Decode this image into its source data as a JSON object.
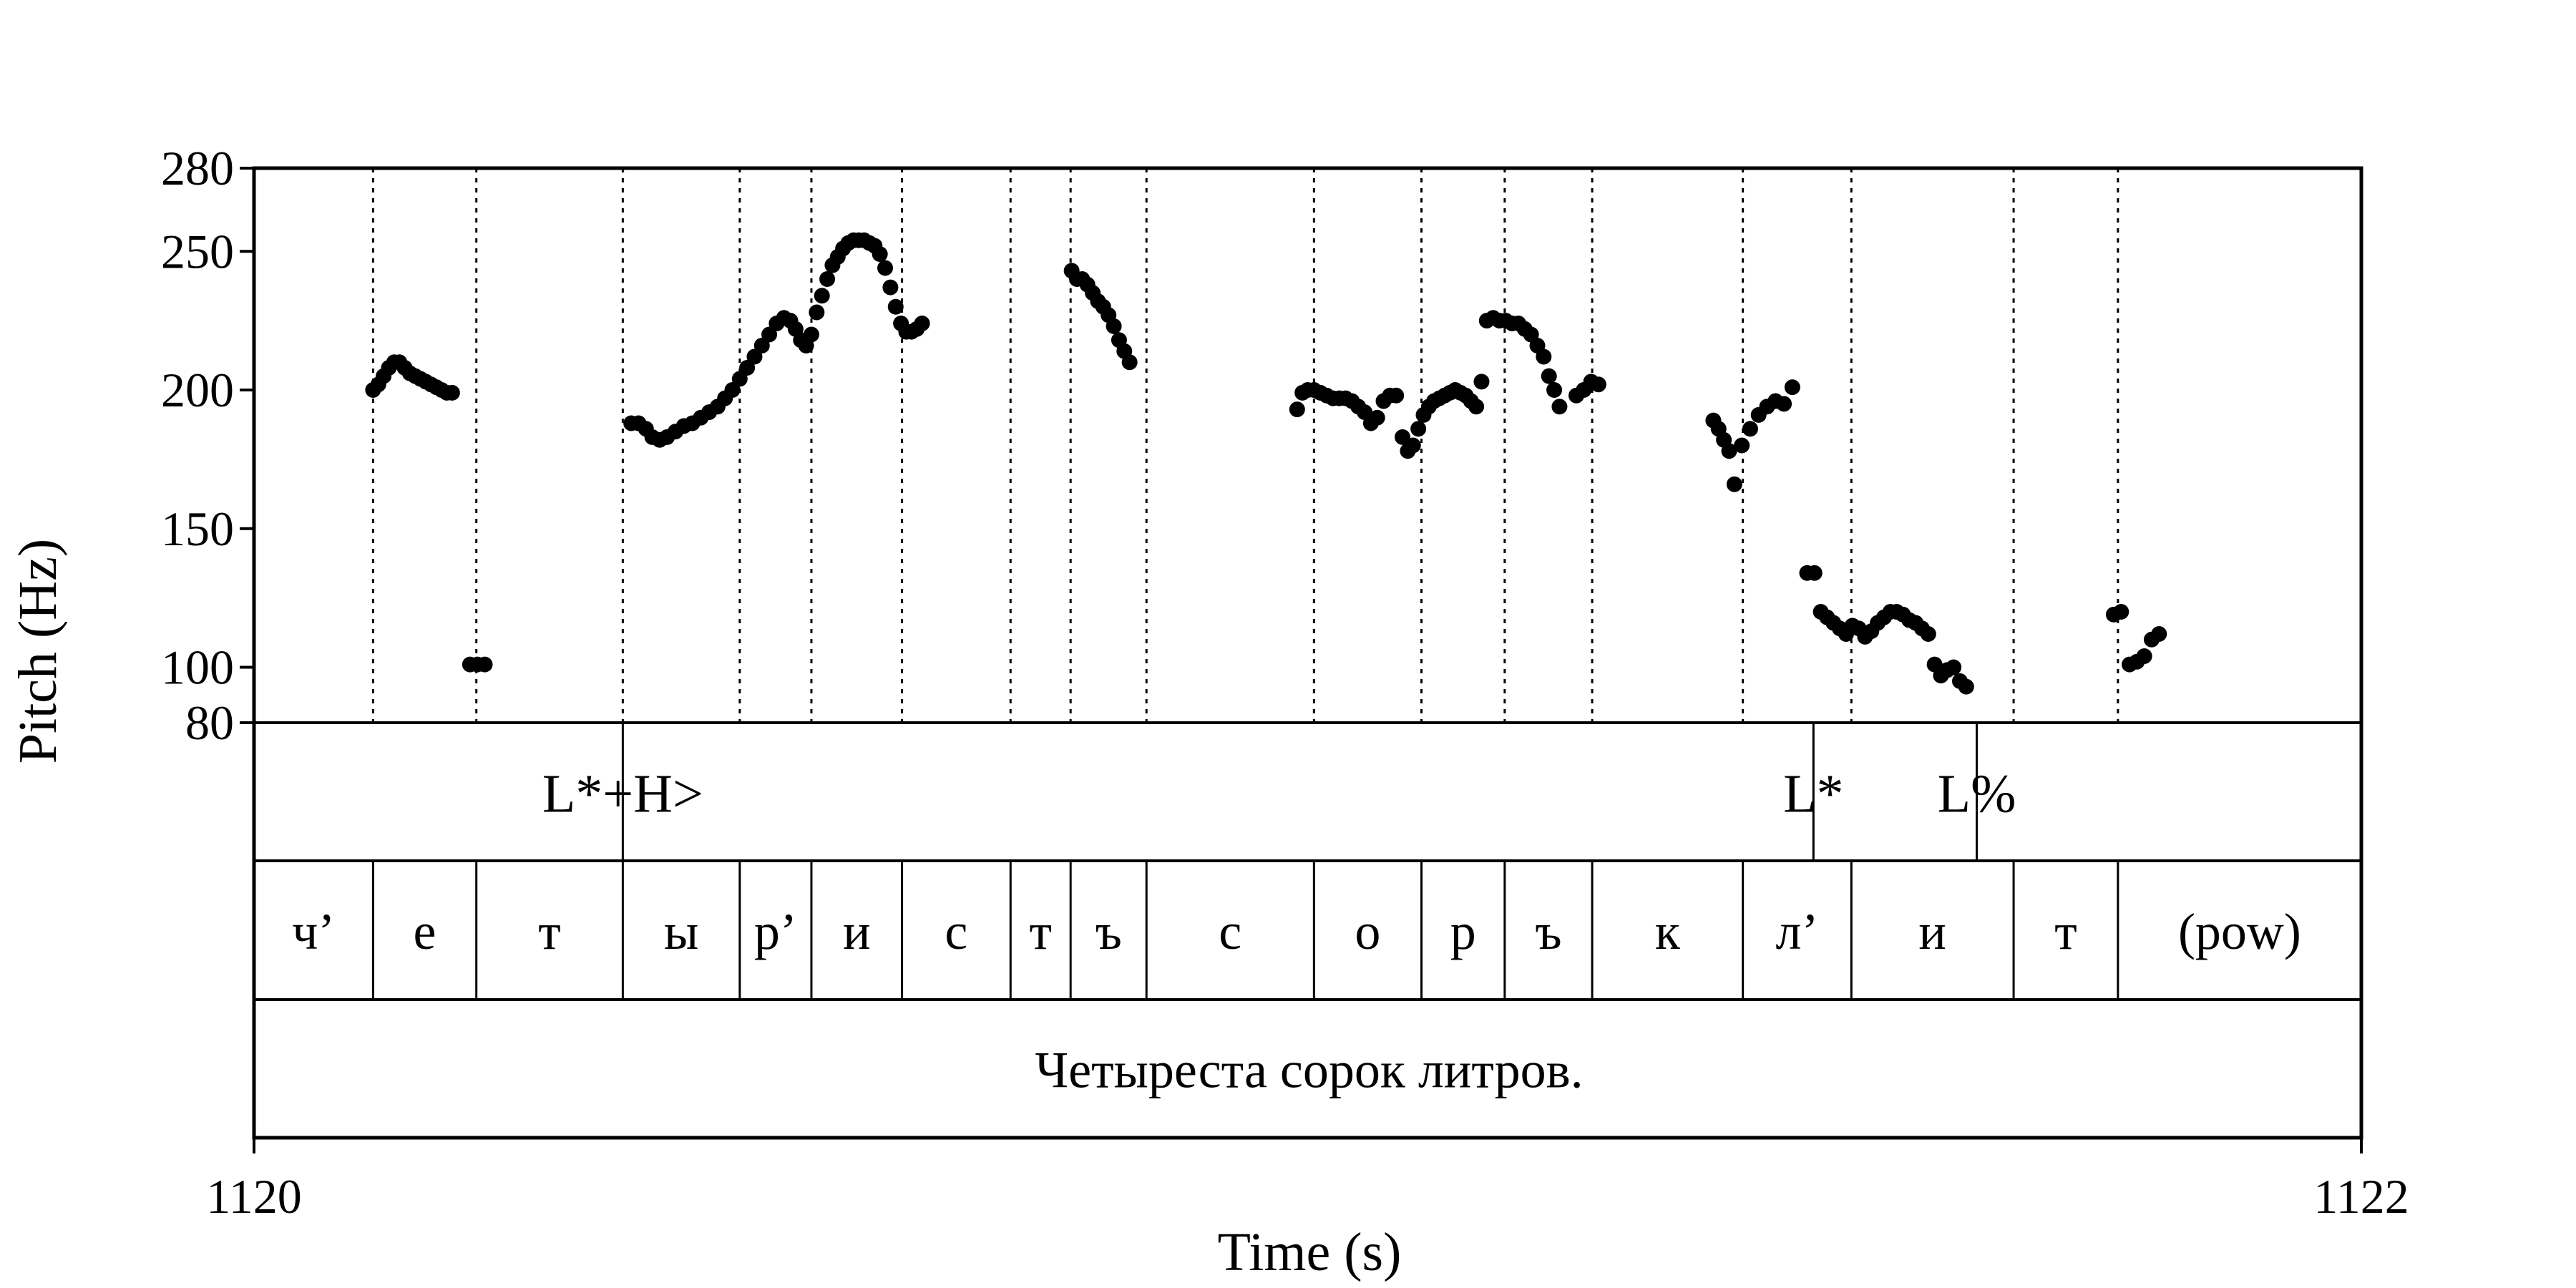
{
  "chart_data": {
    "type": "scatter",
    "title": "",
    "xlabel": "Time (s)",
    "ylabel": "Pitch (Hz)",
    "xlim": [
      1120,
      1122
    ],
    "ylim": [
      80,
      280
    ],
    "x_ticks": [
      1120,
      1122
    ],
    "x_tick_labels": [
      "1120",
      "1122"
    ],
    "y_ticks": [
      80,
      100,
      150,
      200,
      250,
      280
    ],
    "y_tick_labels": [
      "80",
      "100",
      "150",
      "200",
      "250",
      "280"
    ],
    "grid": false,
    "legend": "none",
    "series": [
      {
        "points": [
          [
            1120.113,
            200
          ],
          [
            1120.118,
            202
          ],
          [
            1120.123,
            205
          ],
          [
            1120.128,
            208
          ],
          [
            1120.133,
            210
          ],
          [
            1120.138,
            210
          ],
          [
            1120.143,
            208
          ],
          [
            1120.148,
            206
          ],
          [
            1120.153,
            205
          ],
          [
            1120.158,
            204
          ],
          [
            1120.163,
            203
          ],
          [
            1120.168,
            202
          ],
          [
            1120.173,
            201
          ],
          [
            1120.178,
            200
          ],
          [
            1120.183,
            199
          ],
          [
            1120.188,
            199
          ],
          [
            1120.205,
            101
          ],
          [
            1120.212,
            101
          ],
          [
            1120.219,
            101
          ],
          [
            1120.358,
            188
          ],
          [
            1120.365,
            188
          ],
          [
            1120.372,
            186
          ],
          [
            1120.378,
            183
          ],
          [
            1120.385,
            182
          ],
          [
            1120.392,
            183
          ],
          [
            1120.4,
            185
          ],
          [
            1120.408,
            187
          ],
          [
            1120.416,
            188
          ],
          [
            1120.424,
            190
          ],
          [
            1120.432,
            192
          ],
          [
            1120.44,
            194
          ],
          [
            1120.447,
            197
          ],
          [
            1120.454,
            200
          ],
          [
            1120.461,
            204
          ],
          [
            1120.468,
            208
          ],
          [
            1120.475,
            212
          ],
          [
            1120.482,
            216
          ],
          [
            1120.489,
            220
          ],
          [
            1120.496,
            224
          ],
          [
            1120.503,
            226
          ],
          [
            1120.509,
            225
          ],
          [
            1120.514,
            222
          ],
          [
            1120.519,
            218
          ],
          [
            1120.524,
            216
          ],
          [
            1120.529,
            220
          ],
          [
            1120.534,
            228
          ],
          [
            1120.539,
            234
          ],
          [
            1120.544,
            240
          ],
          [
            1120.549,
            245
          ],
          [
            1120.554,
            248
          ],
          [
            1120.559,
            251
          ],
          [
            1120.564,
            253
          ],
          [
            1120.569,
            254
          ],
          [
            1120.574,
            254
          ],
          [
            1120.579,
            254
          ],
          [
            1120.584,
            253
          ],
          [
            1120.589,
            252
          ],
          [
            1120.594,
            249
          ],
          [
            1120.599,
            244
          ],
          [
            1120.604,
            237
          ],
          [
            1120.609,
            230
          ],
          [
            1120.614,
            224
          ],
          [
            1120.619,
            221
          ],
          [
            1120.624,
            221
          ],
          [
            1120.629,
            222
          ],
          [
            1120.634,
            224
          ],
          [
            1120.776,
            243
          ],
          [
            1120.781,
            240
          ],
          [
            1120.786,
            240
          ],
          [
            1120.791,
            238
          ],
          [
            1120.796,
            235
          ],
          [
            1120.801,
            232
          ],
          [
            1120.806,
            230
          ],
          [
            1120.811,
            227
          ],
          [
            1120.816,
            223
          ],
          [
            1120.821,
            218
          ],
          [
            1120.826,
            214
          ],
          [
            1120.831,
            210
          ],
          [
            1120.99,
            193
          ],
          [
            1120.995,
            199
          ],
          [
            1121.0,
            200
          ],
          [
            1121.006,
            200
          ],
          [
            1121.012,
            199
          ],
          [
            1121.018,
            198
          ],
          [
            1121.024,
            197
          ],
          [
            1121.03,
            197
          ],
          [
            1121.036,
            197
          ],
          [
            1121.042,
            196
          ],
          [
            1121.048,
            194
          ],
          [
            1121.054,
            192
          ],
          [
            1121.06,
            188
          ],
          [
            1121.066,
            190
          ],
          [
            1121.072,
            196
          ],
          [
            1121.078,
            198
          ],
          [
            1121.084,
            198
          ],
          [
            1121.09,
            183
          ],
          [
            1121.095,
            178
          ],
          [
            1121.1,
            180
          ],
          [
            1121.105,
            186
          ],
          [
            1121.11,
            191
          ],
          [
            1121.115,
            194
          ],
          [
            1121.12,
            196
          ],
          [
            1121.125,
            197
          ],
          [
            1121.13,
            198
          ],
          [
            1121.135,
            199
          ],
          [
            1121.14,
            200
          ],
          [
            1121.145,
            199
          ],
          [
            1121.15,
            198
          ],
          [
            1121.155,
            196
          ],
          [
            1121.16,
            194
          ],
          [
            1121.165,
            203
          ],
          [
            1121.17,
            225
          ],
          [
            1121.176,
            226
          ],
          [
            1121.182,
            225
          ],
          [
            1121.188,
            225
          ],
          [
            1121.194,
            224
          ],
          [
            1121.2,
            224
          ],
          [
            1121.206,
            222
          ],
          [
            1121.212,
            220
          ],
          [
            1121.218,
            216
          ],
          [
            1121.224,
            212
          ],
          [
            1121.229,
            205
          ],
          [
            1121.234,
            200
          ],
          [
            1121.239,
            194
          ],
          [
            1121.255,
            198
          ],
          [
            1121.262,
            200
          ],
          [
            1121.269,
            203
          ],
          [
            1121.276,
            202
          ],
          [
            1121.385,
            189
          ],
          [
            1121.39,
            186
          ],
          [
            1121.395,
            182
          ],
          [
            1121.4,
            178
          ],
          [
            1121.405,
            166
          ],
          [
            1121.412,
            180
          ],
          [
            1121.42,
            186
          ],
          [
            1121.428,
            191
          ],
          [
            1121.436,
            194
          ],
          [
            1121.444,
            196
          ],
          [
            1121.452,
            195
          ],
          [
            1121.46,
            201
          ],
          [
            1121.474,
            134
          ],
          [
            1121.481,
            134
          ],
          [
            1121.487,
            120
          ],
          [
            1121.493,
            118
          ],
          [
            1121.499,
            116
          ],
          [
            1121.505,
            114
          ],
          [
            1121.511,
            112
          ],
          [
            1121.517,
            115
          ],
          [
            1121.523,
            114
          ],
          [
            1121.529,
            111
          ],
          [
            1121.535,
            113
          ],
          [
            1121.541,
            116
          ],
          [
            1121.547,
            118
          ],
          [
            1121.553,
            120
          ],
          [
            1121.559,
            120
          ],
          [
            1121.565,
            119
          ],
          [
            1121.571,
            117
          ],
          [
            1121.577,
            116
          ],
          [
            1121.583,
            114
          ],
          [
            1121.589,
            112
          ],
          [
            1121.595,
            101
          ],
          [
            1121.601,
            97
          ],
          [
            1121.607,
            99
          ],
          [
            1121.613,
            100
          ],
          [
            1121.619,
            95
          ],
          [
            1121.625,
            93
          ],
          [
            1121.765,
            119
          ],
          [
            1121.772,
            120
          ],
          [
            1121.78,
            101
          ],
          [
            1121.787,
            102
          ],
          [
            1121.794,
            104
          ],
          [
            1121.801,
            110
          ],
          [
            1121.808,
            112
          ]
        ]
      }
    ]
  },
  "tiers": {
    "tones": {
      "boundaries": [
        1120.35,
        1121.48,
        1121.635
      ],
      "labels": [
        {
          "text": "L*+H>",
          "t": 1120.35
        },
        {
          "text": "L*",
          "t": 1121.48
        },
        {
          "text": "L%",
          "t": 1121.635
        }
      ]
    },
    "segments": {
      "boundaries": [
        1120.113,
        1120.211,
        1120.35,
        1120.461,
        1120.529,
        1120.615,
        1120.718,
        1120.775,
        1120.847,
        1121.006,
        1121.108,
        1121.187,
        1121.27,
        1121.413,
        1121.516,
        1121.67,
        1121.769
      ],
      "labels": [
        "ч’",
        "е",
        "т",
        "ы",
        "р’",
        "и",
        "с",
        "т",
        "ъ",
        "с",
        "о",
        "р",
        "ъ",
        "к",
        "л’",
        "и",
        "т",
        "(pow)"
      ]
    },
    "sentence": {
      "text": "Четыреста сорок литров."
    }
  }
}
